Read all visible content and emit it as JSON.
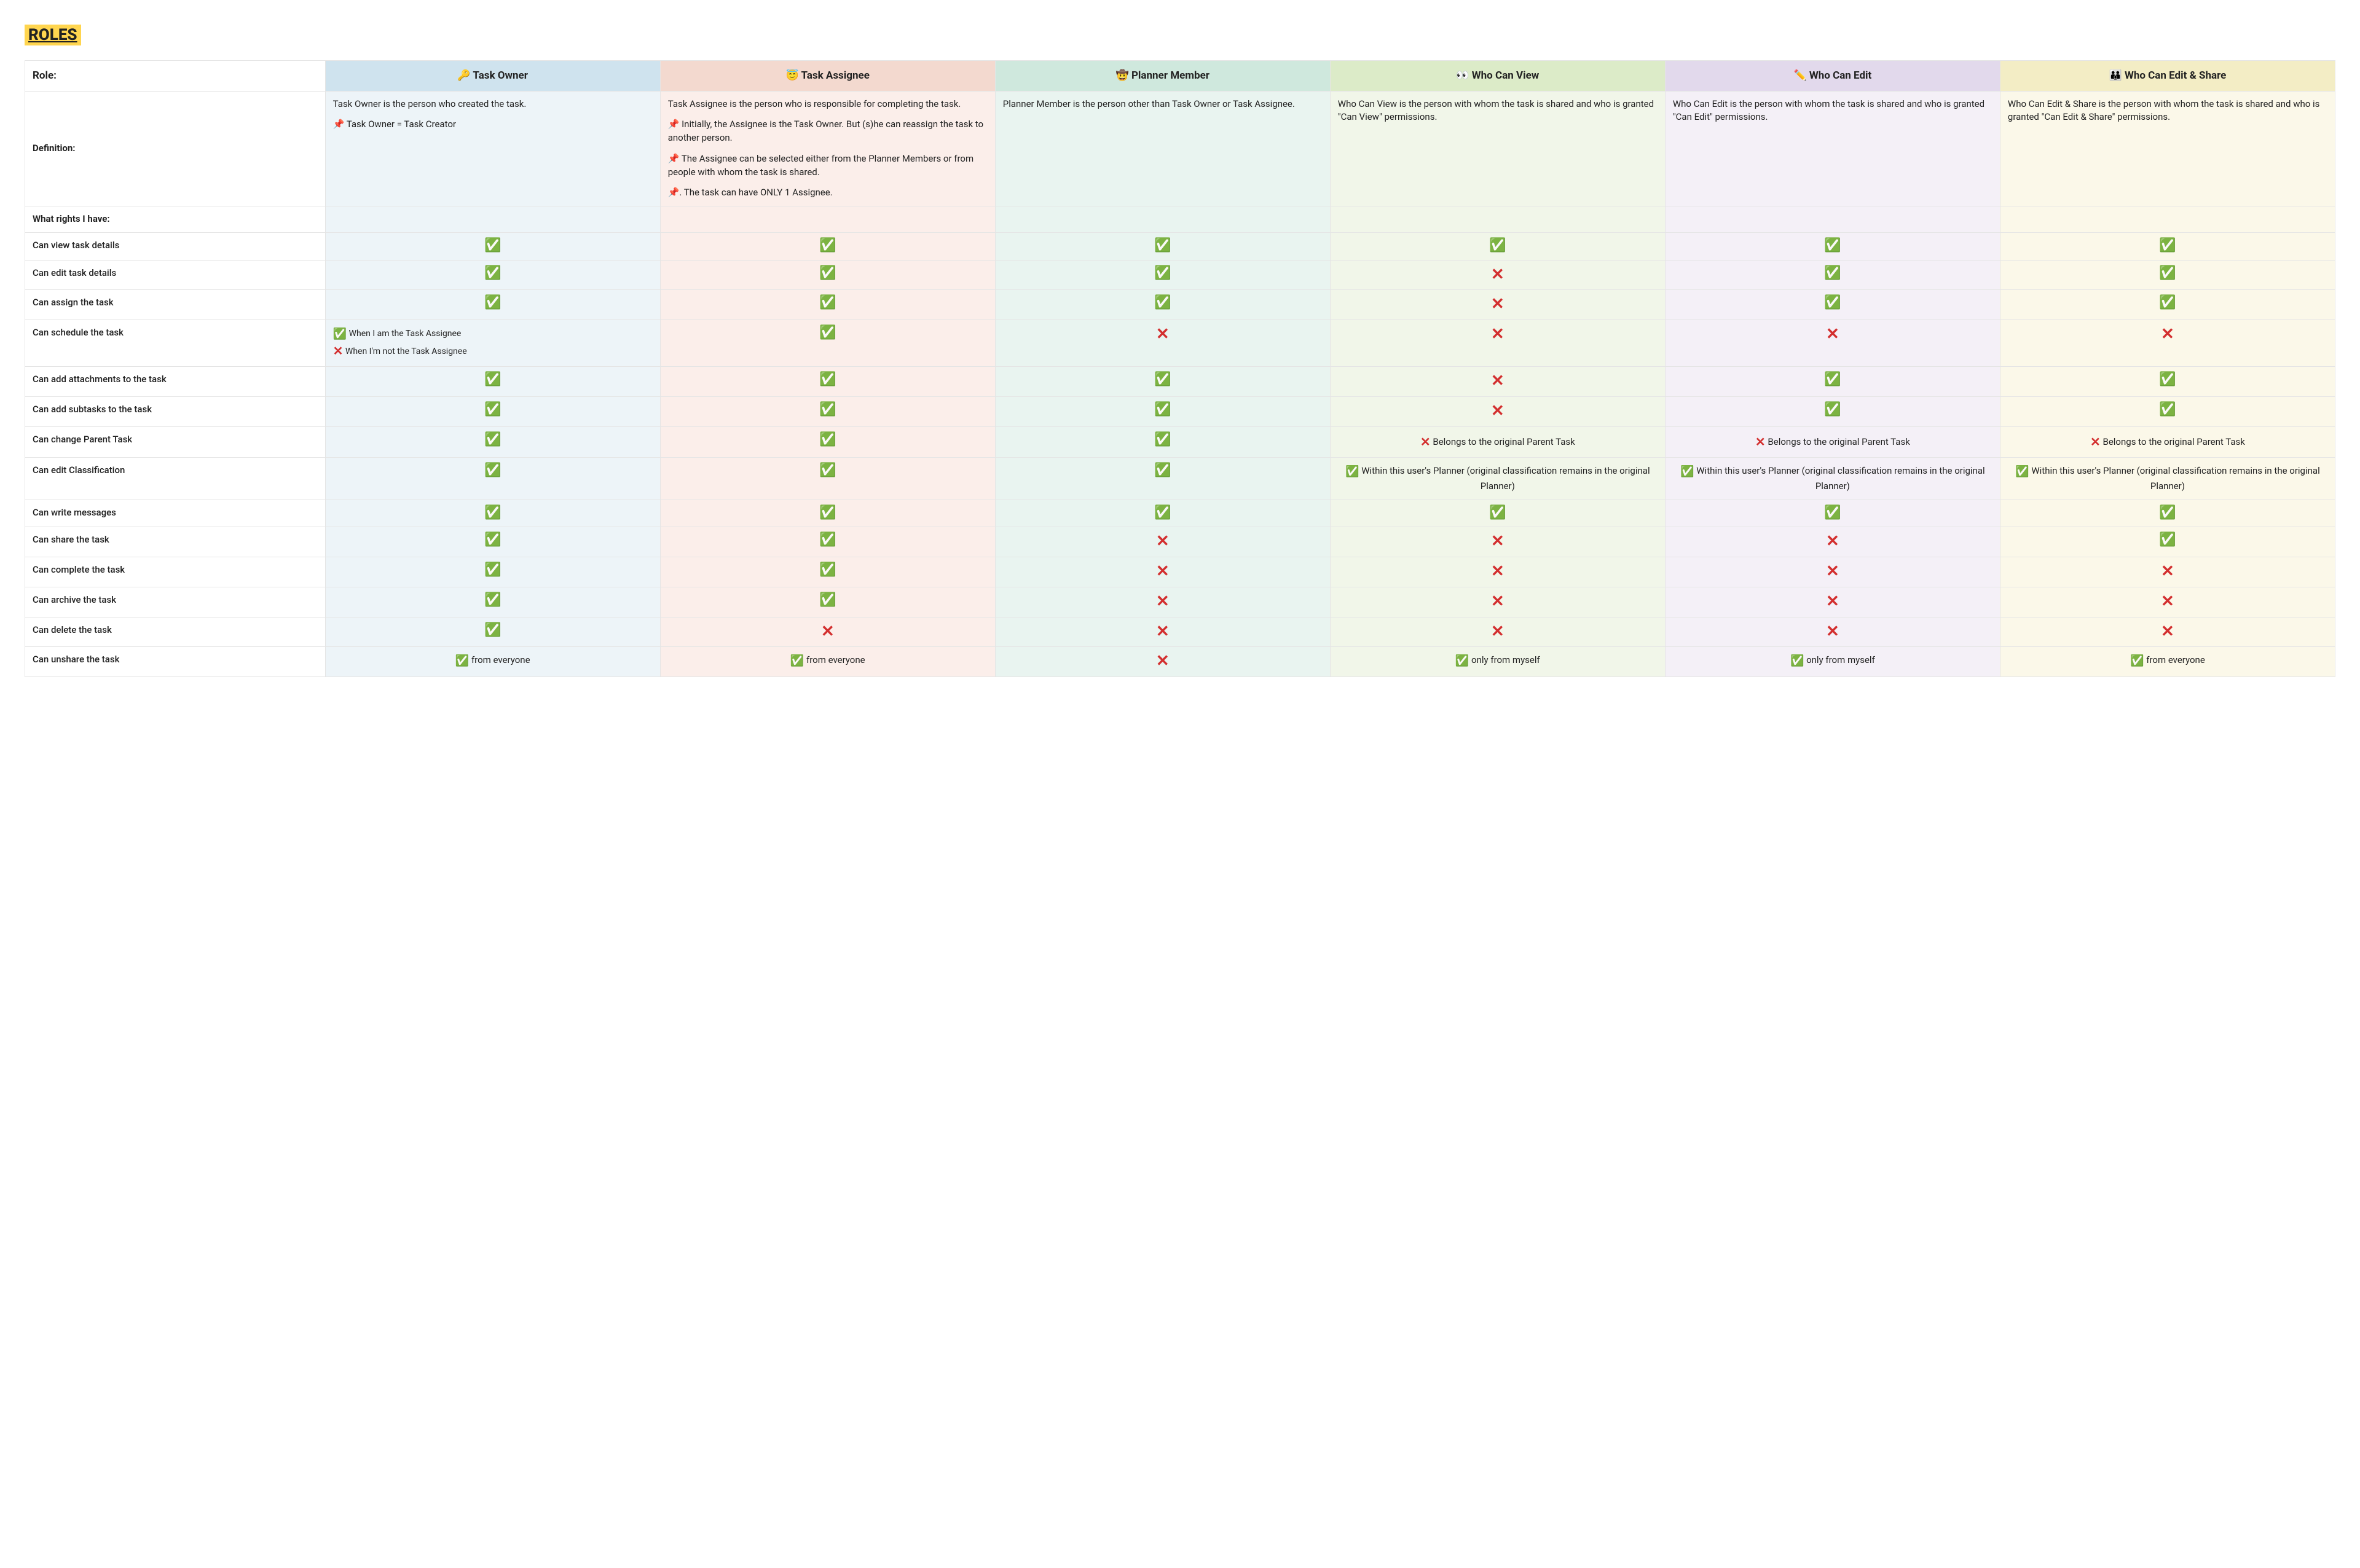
{
  "title": "ROLES",
  "header": {
    "role_label": "Role:",
    "cols": [
      {
        "icon": "🔑",
        "label": "Task Owner"
      },
      {
        "icon": "😇",
        "label": "Task Assignee"
      },
      {
        "icon": "🤠",
        "label": "Planner Member"
      },
      {
        "icon": "👀",
        "label": "Who Can View"
      },
      {
        "icon": "✏️",
        "label": "Who Can Edit"
      },
      {
        "icon": "👪",
        "label": "Who Can Edit & Share"
      }
    ]
  },
  "definition": {
    "label": "Definition:",
    "c1": {
      "p1": "Task Owner is the person who created the task.",
      "p2": "📌 Task Owner = Task Creator"
    },
    "c2": {
      "p1": "Task Assignee is the person who is responsible for completing the task.",
      "p2": "📌 Initially, the Assignee is the Task Owner. But (s)he can reassign the task to another person.",
      "p3": "📌 The Assignee can be selected either from the Planner Members or from people with whom the task is shared.",
      "p4": "📌. The task can have ONLY 1 Assignee."
    },
    "c3": {
      "p1": "Planner Member is the person other than Task Owner or Task Assignee."
    },
    "c4": {
      "p1": "Who Can View is the person with whom the task is shared and who is granted \"Can View\" permissions."
    },
    "c5": {
      "p1": "Who Can Edit is the person with whom the task is shared and who is granted \"Can Edit\" permissions."
    },
    "c6": {
      "p1": "Who Can Edit & Share is the person with whom the task is shared and who is granted \"Can Edit & Share\" permissions."
    }
  },
  "rights_label": "What rights I have:",
  "notes": {
    "schedule_yes": "When I am the Task Assignee",
    "schedule_no": "When I'm not the Task Assignee",
    "parent_no": "Belongs to the original Parent Task",
    "classif_yes": "Within this user's Planner (original classification remains in the original Planner)",
    "unshare_everyone": "from everyone",
    "unshare_myself": "only from myself"
  },
  "rows": [
    {
      "label": "Can view task details",
      "c": [
        "y",
        "y",
        "y",
        "y",
        "y",
        "y"
      ]
    },
    {
      "label": "Can edit task details",
      "c": [
        "y",
        "y",
        "y",
        "n",
        "y",
        "y"
      ]
    },
    {
      "label": "Can assign the task",
      "c": [
        "y",
        "y",
        "y",
        "n",
        "y",
        "y"
      ]
    },
    {
      "label": "Can schedule the task",
      "c": [
        "sched",
        "y",
        "n",
        "n",
        "n",
        "n"
      ]
    },
    {
      "label": "Can add attachments to the task",
      "c": [
        "y",
        "y",
        "y",
        "n",
        "y",
        "y"
      ]
    },
    {
      "label": "Can add subtasks to the task",
      "c": [
        "y",
        "y",
        "y",
        "n",
        "y",
        "y"
      ]
    },
    {
      "label": "Can change Parent Task",
      "c": [
        "y",
        "y",
        "y",
        "pno",
        "pno",
        "pno"
      ]
    },
    {
      "label": "Can edit Classification",
      "c": [
        "y",
        "y",
        "y",
        "cyes",
        "cyes",
        "cyes"
      ]
    },
    {
      "label": "Can write messages",
      "c": [
        "y",
        "y",
        "y",
        "y",
        "y",
        "y"
      ]
    },
    {
      "label": "Can share the task",
      "c": [
        "y",
        "y",
        "n",
        "n",
        "n",
        "y"
      ]
    },
    {
      "label": "Can complete the task",
      "c": [
        "y",
        "y",
        "n",
        "n",
        "n",
        "n"
      ]
    },
    {
      "label": "Can archive the task",
      "c": [
        "y",
        "y",
        "n",
        "n",
        "n",
        "n"
      ]
    },
    {
      "label": "Can delete the task",
      "c": [
        "y",
        "n",
        "n",
        "n",
        "n",
        "n"
      ]
    },
    {
      "label": "Can unshare the task",
      "c": [
        "uev",
        "uev",
        "n",
        "ume",
        "ume",
        "uev"
      ]
    }
  ],
  "style": {
    "col_bg": [
      "#ffffff",
      "#edf4f8",
      "#fbeeea",
      "#e9f4f0",
      "#f1f6e9",
      "#f4f0f7",
      "#fbf8e9"
    ],
    "hdr_bg": [
      "#ffffff",
      "#cfe3ee",
      "#f3d9cf",
      "#cfe8dd",
      "#dcebc8",
      "#e2d9ec",
      "#f3edc5"
    ],
    "yes_glyph": "✅",
    "no_glyph": "✕",
    "pin_glyph": "📌",
    "no_color": "#d32f2f",
    "border": "#e5e5e5",
    "title_bg": "#ffd54f"
  }
}
